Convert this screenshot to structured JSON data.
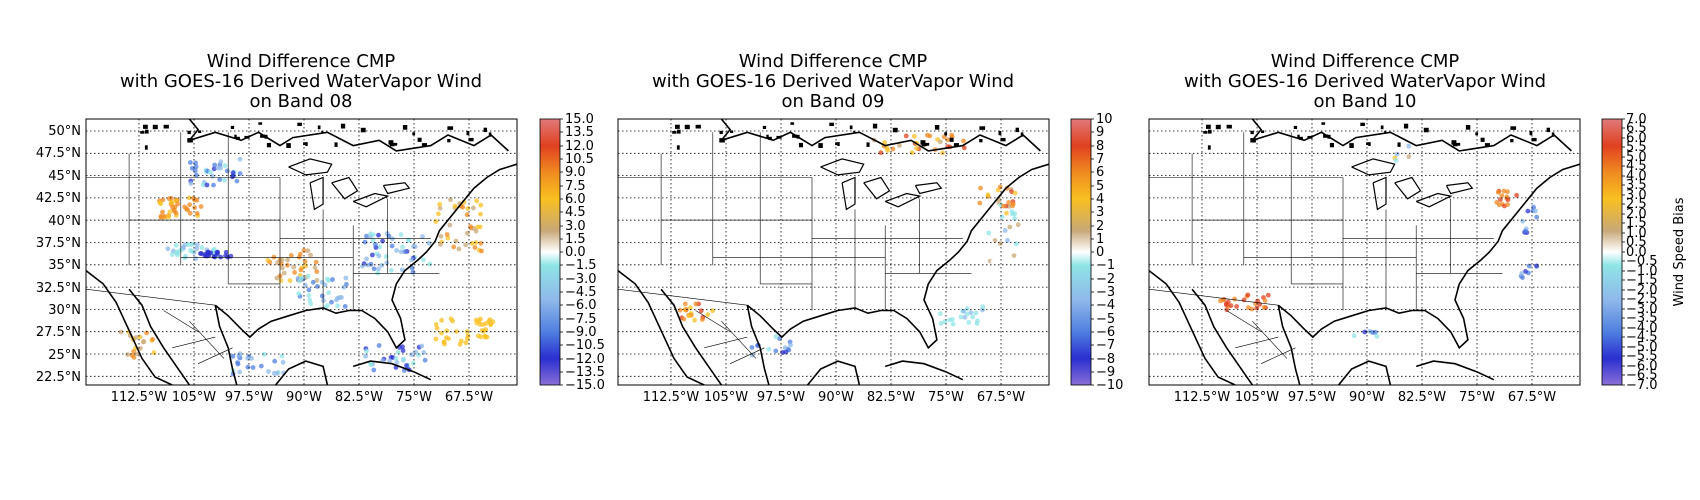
{
  "figure": {
    "colorbar_label": "Wind Speed Bias",
    "colormap_stops": [
      "#8a6fd8",
      "#2a2fd0",
      "#4f7fe0",
      "#8fb8ea",
      "#8fe4e6",
      "#ffffff",
      "#c8a878",
      "#f8c020",
      "#f08a20",
      "#e04020",
      "#e07a7a"
    ],
    "map_colors": {
      "coast": "#000000",
      "border": "#000000",
      "grid": "#000000"
    }
  },
  "panels": [
    {
      "title_lines": [
        "Wind Difference CMP",
        "with GOES-16 Derived WaterVapor Wind",
        "on Band 08"
      ],
      "lat_ticks": [
        "50°N",
        "47.5°N",
        "45°N",
        "42.5°N",
        "40°N",
        "37.5°N",
        "35°N",
        "32.5°N",
        "30°N",
        "27.5°N",
        "25°N",
        "22.5°N"
      ],
      "lon_ticks": [
        "112.5°W",
        "105°W",
        "97.5°W",
        "90°W",
        "82.5°W",
        "75°W",
        "67.5°W"
      ],
      "colorbar_ticks": [
        "15.0",
        "13.5",
        "12.0",
        "10.5",
        "9.0",
        "7.5",
        "6.0",
        "4.5",
        "3.0",
        "1.5",
        "0.0",
        "−1.5",
        "−3.0",
        "−4.5",
        "−6.0",
        "−7.5",
        "−9.0",
        "−10.5",
        "−12.0",
        "−13.5",
        "−15.0"
      ],
      "vmin": -15,
      "vmax": 15
    },
    {
      "title_lines": [
        "Wind Difference CMP",
        "with GOES-16 Derived WaterVapor Wind",
        "on Band 09"
      ],
      "lat_ticks": [],
      "lon_ticks": [
        "112.5°W",
        "105°W",
        "97.5°W",
        "90°W",
        "82.5°W",
        "75°W",
        "67.5°W"
      ],
      "colorbar_ticks": [
        "10",
        "9",
        "8",
        "7",
        "6",
        "5",
        "4",
        "3",
        "2",
        "1",
        "0",
        "−1",
        "−2",
        "−3",
        "−4",
        "−5",
        "−6",
        "−7",
        "−8",
        "−9",
        "−10"
      ],
      "vmin": -10,
      "vmax": 10
    },
    {
      "title_lines": [
        "Wind Difference CMP",
        "with GOES-16 Derived WaterVapor Wind",
        "on Band 10"
      ],
      "lat_ticks": [],
      "lon_ticks": [
        "112.5°W",
        "105°W",
        "97.5°W",
        "90°W",
        "82.5°W",
        "75°W",
        "67.5°W"
      ],
      "colorbar_ticks": [
        "7.0",
        "6.5",
        "6.0",
        "5.5",
        "5.0",
        "4.5",
        "4.0",
        "3.5",
        "3.0",
        "2.5",
        "2.0",
        "1.5",
        "1.0",
        "0.5",
        "0.0",
        "−0.5",
        "−1.0",
        "−1.5",
        "−2.0",
        "−2.5",
        "−3.0",
        "−3.5",
        "−4.0",
        "−4.5",
        "−5.0",
        "−5.5",
        "−6.0",
        "−6.5",
        "−7.0"
      ],
      "vmin": -7,
      "vmax": 7
    }
  ]
}
